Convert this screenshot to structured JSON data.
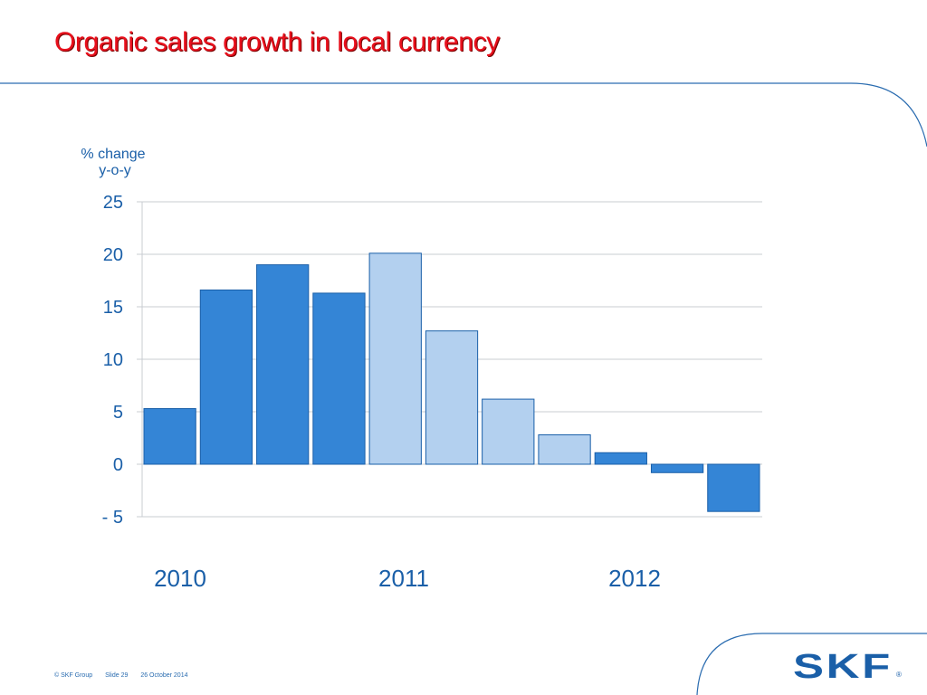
{
  "slide": {
    "title": "Organic sales growth in local currency",
    "footer": {
      "copyright": "© SKF Group",
      "slide": "Slide 29",
      "date": "26 October 2014"
    },
    "logo_text": "SKF"
  },
  "colors": {
    "title": "#e8101c",
    "bar_dark": "#3485d6",
    "bar_light": "#b3d0ef",
    "bar_stroke": "#1a5fa8",
    "text": "#1a5fa8",
    "grid": "#c8ccd2"
  },
  "chart_data": {
    "type": "bar",
    "ylabel_lines": [
      "% change",
      "y-o-y"
    ],
    "ylim": [
      -5,
      25
    ],
    "yticks": [
      25,
      20,
      15,
      10,
      5,
      0,
      -5
    ],
    "ytick_labels": [
      "25",
      "20",
      "15",
      "10",
      "5",
      "0",
      "- 5"
    ],
    "grid": true,
    "years": [
      "2010",
      "2011",
      "2012"
    ],
    "bars": [
      {
        "value": 5.3,
        "style": "dark"
      },
      {
        "value": 16.6,
        "style": "dark"
      },
      {
        "value": 19.0,
        "style": "dark"
      },
      {
        "value": 16.3,
        "style": "dark"
      },
      {
        "value": 20.1,
        "style": "light"
      },
      {
        "value": 12.7,
        "style": "light"
      },
      {
        "value": 6.2,
        "style": "light"
      },
      {
        "value": 2.8,
        "style": "light"
      },
      {
        "value": 1.1,
        "style": "dark"
      },
      {
        "value": -0.8,
        "style": "dark"
      },
      {
        "value": -4.5,
        "style": "dark"
      }
    ]
  }
}
